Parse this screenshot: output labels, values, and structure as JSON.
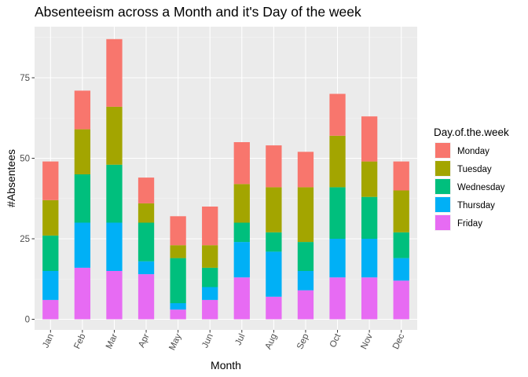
{
  "chart_data": {
    "type": "bar",
    "stacked": true,
    "title": "Absenteeism across a Month and it's Day of the week",
    "xlabel": "Month",
    "ylabel": "#Absentees",
    "categories": [
      "Jan",
      "Feb",
      "Mar",
      "Apr",
      "May",
      "Jun",
      "Jul",
      "Aug",
      "Sep",
      "Oct",
      "Nov",
      "Dec"
    ],
    "ylim": [
      0,
      90
    ],
    "yticks": [
      0,
      25,
      50,
      75
    ],
    "grid": true,
    "legend": {
      "title": "Day.of.the.week",
      "position": "right"
    },
    "series": [
      {
        "name": "Friday",
        "color": "#E76BF3",
        "values": [
          6,
          16,
          15,
          14,
          3,
          6,
          13,
          7,
          9,
          13,
          13,
          12
        ]
      },
      {
        "name": "Thursday",
        "color": "#00B0F6",
        "values": [
          9,
          14,
          15,
          4,
          2,
          4,
          11,
          14,
          6,
          12,
          12,
          7
        ]
      },
      {
        "name": "Wednesday",
        "color": "#00BF7D",
        "values": [
          11,
          15,
          18,
          12,
          14,
          6,
          6,
          6,
          9,
          16,
          13,
          8
        ]
      },
      {
        "name": "Tuesday",
        "color": "#A3A500",
        "values": [
          11,
          14,
          18,
          6,
          4,
          7,
          12,
          14,
          17,
          16,
          11,
          13
        ]
      },
      {
        "name": "Monday",
        "color": "#F8766D",
        "values": [
          12,
          12,
          21,
          8,
          9,
          12,
          13,
          13,
          11,
          13,
          14,
          9
        ]
      }
    ],
    "legend_order": [
      "Monday",
      "Tuesday",
      "Wednesday",
      "Thursday",
      "Friday"
    ]
  }
}
